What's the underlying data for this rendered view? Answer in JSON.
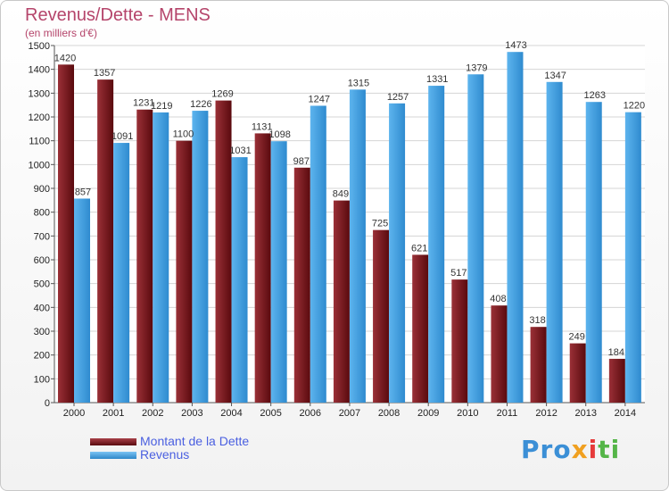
{
  "chart_data": {
    "type": "bar",
    "title": "Revenus/Dette - MENS",
    "subtitle": "(en milliers d'€)",
    "categories": [
      "2000",
      "2001",
      "2002",
      "2003",
      "2004",
      "2005",
      "2006",
      "2007",
      "2008",
      "2009",
      "2010",
      "2011",
      "2012",
      "2013",
      "2014"
    ],
    "series": [
      {
        "name": "Montant de la Dette",
        "color": "#7a1a1e",
        "values": [
          1420,
          1357,
          1231,
          1100,
          1269,
          1131,
          987,
          849,
          725,
          621,
          517,
          408,
          318,
          249,
          184
        ]
      },
      {
        "name": "Revenus",
        "color": "#4aa6e6",
        "values": [
          857,
          1091,
          1219,
          1226,
          1031,
          1098,
          1247,
          1315,
          1257,
          1331,
          1379,
          1473,
          1347,
          1263,
          1220
        ]
      }
    ],
    "ylim": [
      0,
      1500
    ],
    "yticks": [
      0,
      100,
      200,
      300,
      400,
      500,
      600,
      700,
      800,
      900,
      1000,
      1100,
      1200,
      1300,
      1400,
      1500
    ],
    "grid": true,
    "legend_position": "bottom-left"
  },
  "brand": {
    "p1": "Pro",
    "p2": "x",
    "p3": "i",
    "p4": "ti"
  }
}
